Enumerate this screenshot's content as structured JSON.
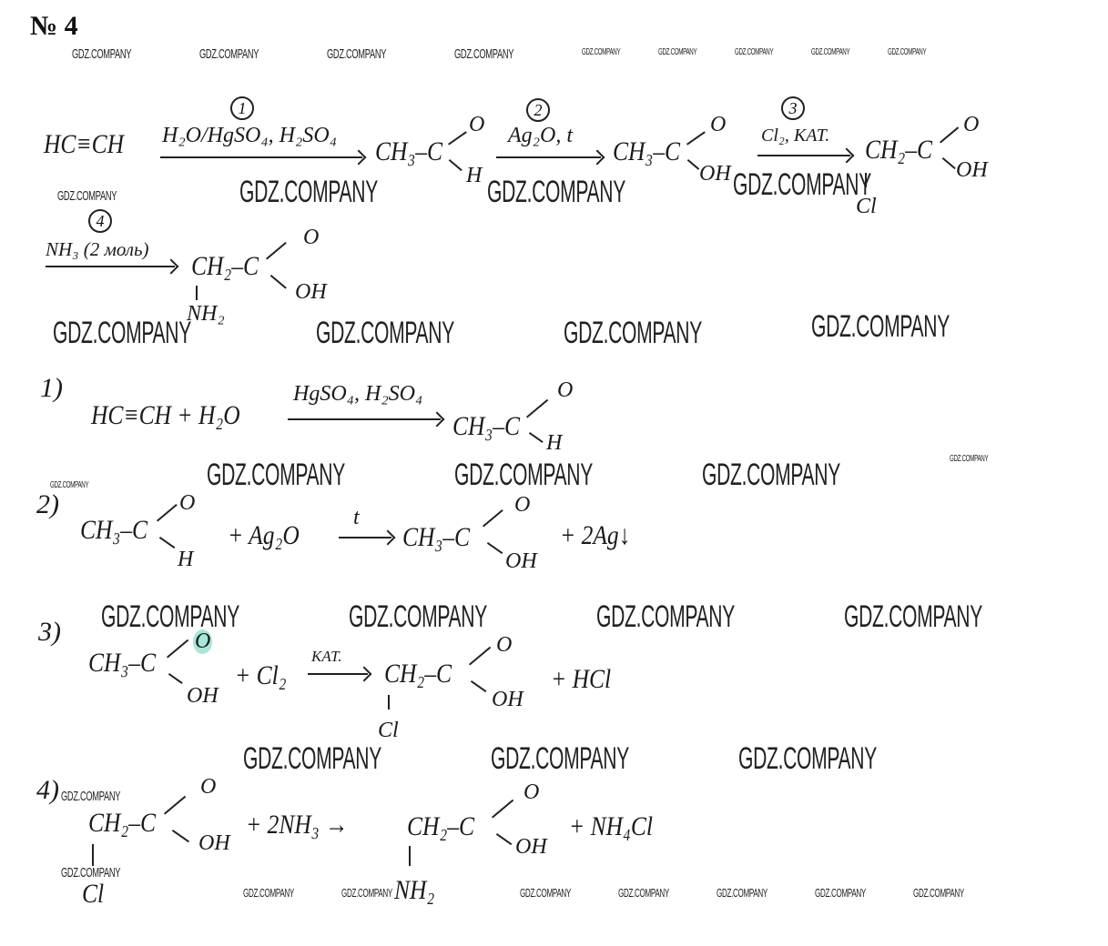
{
  "title": "№ 4",
  "watermark": "GDZ.COMPANY",
  "scheme": {
    "start": "HC≡CH",
    "step_numbers": [
      "1",
      "2",
      "3",
      "4"
    ],
    "conditions": [
      "H₂O/HgSO₄, H₂SO₄",
      "Ag₂O, t",
      "Cl₂, KAT.",
      "NH₃ (2 моль)"
    ],
    "products": [
      {
        "main": "CH₃–C",
        "top": "O",
        "bottom": "H"
      },
      {
        "main": "CH₃–C",
        "top": "O",
        "bottom": "OH"
      },
      {
        "main": "CH₂–C",
        "top": "O",
        "bottom": "OH",
        "sub": "Cl"
      },
      {
        "main": "CH₂–C",
        "top": "O",
        "bottom": "OH",
        "sub": "NH₂"
      }
    ]
  },
  "equations": [
    {
      "label": "1)",
      "left": "HC≡CH + H₂O",
      "condition": "HgSO₄, H₂SO₄",
      "product": {
        "main": "CH₃–C",
        "top": "O",
        "bottom": "H"
      }
    },
    {
      "label": "2)",
      "reactant": {
        "main": "CH₃–C",
        "top": "O",
        "bottom": "H"
      },
      "plus": "+ Ag₂O",
      "condition": "t",
      "product": {
        "main": "CH₃–C",
        "top": "O",
        "bottom": "OH"
      },
      "tail": "+ 2Ag↓"
    },
    {
      "label": "3)",
      "reactant": {
        "main": "CH₃–C",
        "top": "O",
        "bottom": "OH"
      },
      "plus": "+ Cl₂",
      "condition": "KAT.",
      "product": {
        "main": "CH₂–C",
        "top": "O",
        "bottom": "OH",
        "sub": "Cl"
      },
      "tail": "+ HCl"
    },
    {
      "label": "4)",
      "reactant": {
        "main": "CH₂–C",
        "top": "O",
        "bottom": "OH",
        "sub": "Cl"
      },
      "plus": "+ 2NH₃ →",
      "product": {
        "main": "CH₂–C",
        "top": "O",
        "bottom": "OH",
        "sub": "NH₂"
      },
      "tail": "+ NH₄Cl"
    }
  ],
  "highlight_color": "#a8e6d8"
}
